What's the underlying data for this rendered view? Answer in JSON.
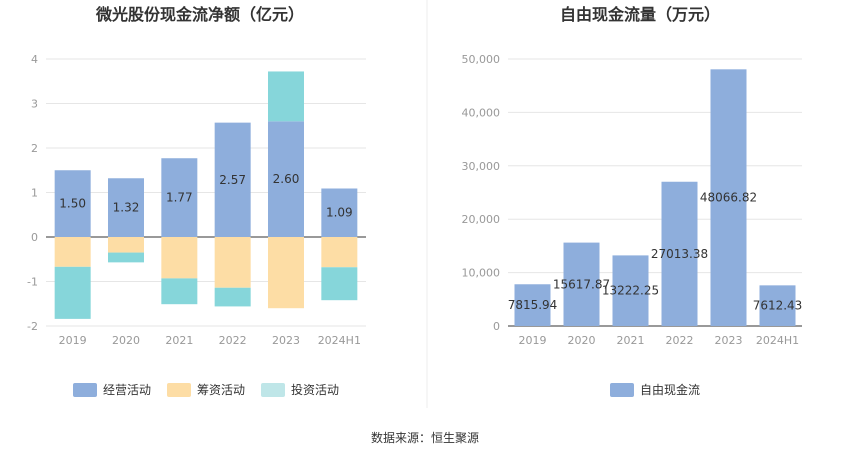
{
  "chart_data": [
    {
      "type": "bar",
      "stacked": true,
      "title": "微光股份现金流净额（亿元）",
      "categories": [
        "2019",
        "2020",
        "2021",
        "2022",
        "2023",
        "2024H1"
      ],
      "ylim": [
        -2,
        4
      ],
      "yticks": [
        "4",
        "3",
        "2",
        "1",
        "0",
        "-1",
        "-2"
      ],
      "ytick_values": [
        4,
        3,
        2,
        1,
        0,
        -1,
        -2
      ],
      "grid": true,
      "legend_position": "bottom",
      "series": [
        {
          "name": "经营活动",
          "color": "#8eaedc",
          "values": [
            1.5,
            1.32,
            1.77,
            2.57,
            2.6,
            1.09
          ],
          "labels": [
            "1.50",
            "1.32",
            "1.77",
            "2.57",
            "2.60",
            "1.09"
          ]
        },
        {
          "name": "筹资活动",
          "color": "#fddda5",
          "values": [
            -0.67,
            -0.35,
            -0.93,
            -1.14,
            -1.6,
            -0.68
          ]
        },
        {
          "name": "投资活动",
          "color": "#86d6da",
          "values": [
            -1.17,
            -0.22,
            -0.58,
            -0.42,
            1.12,
            -0.74
          ]
        }
      ]
    },
    {
      "type": "bar",
      "title": "自由现金流量（万元）",
      "categories": [
        "2019",
        "2020",
        "2021",
        "2022",
        "2023",
        "2024H1"
      ],
      "ylim": [
        0,
        50000
      ],
      "yticks": [
        "50,000",
        "40,000",
        "30,000",
        "20,000",
        "10,000",
        "0"
      ],
      "ytick_values": [
        50000,
        40000,
        30000,
        20000,
        10000,
        0
      ],
      "grid": true,
      "legend_position": "bottom",
      "series": [
        {
          "name": "自由现金流",
          "color": "#8eaedc",
          "values": [
            7815.94,
            15617.87,
            13222.25,
            27013.38,
            48066.82,
            7612.43
          ],
          "labels": [
            "7815.94",
            "15617.87",
            "13222.25",
            "27013.38",
            "48066.82",
            "7612.43"
          ]
        }
      ]
    }
  ],
  "footer": {
    "source": "数据来源：恒生聚源"
  },
  "colors": {
    "grid": "#e6e6e6",
    "axis": "#333333",
    "divider": "#eeeeee"
  }
}
